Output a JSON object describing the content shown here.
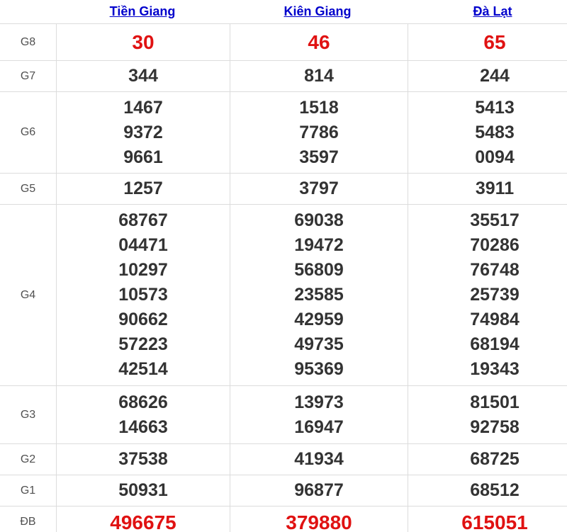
{
  "columns": [
    {
      "label": "Tiền Giang"
    },
    {
      "label": "Kiên Giang"
    },
    {
      "label": "Đà Lạt"
    }
  ],
  "rows": [
    {
      "prize": "G8",
      "highlight": true,
      "values": [
        [
          "30"
        ],
        [
          "46"
        ],
        [
          "65"
        ]
      ]
    },
    {
      "prize": "G7",
      "highlight": false,
      "values": [
        [
          "344"
        ],
        [
          "814"
        ],
        [
          "244"
        ]
      ]
    },
    {
      "prize": "G6",
      "highlight": false,
      "values": [
        [
          "1467",
          "9372",
          "9661"
        ],
        [
          "1518",
          "7786",
          "3597"
        ],
        [
          "5413",
          "5483",
          "0094"
        ]
      ]
    },
    {
      "prize": "G5",
      "highlight": false,
      "values": [
        [
          "1257"
        ],
        [
          "3797"
        ],
        [
          "3911"
        ]
      ]
    },
    {
      "prize": "G4",
      "highlight": false,
      "values": [
        [
          "68767",
          "04471",
          "10297",
          "10573",
          "90662",
          "57223",
          "42514"
        ],
        [
          "69038",
          "19472",
          "56809",
          "23585",
          "42959",
          "49735",
          "95369"
        ],
        [
          "35517",
          "70286",
          "76748",
          "25739",
          "74984",
          "68194",
          "19343"
        ]
      ]
    },
    {
      "prize": "G3",
      "highlight": false,
      "values": [
        [
          "68626",
          "14663"
        ],
        [
          "13973",
          "16947"
        ],
        [
          "81501",
          "92758"
        ]
      ]
    },
    {
      "prize": "G2",
      "highlight": false,
      "values": [
        [
          "37538"
        ],
        [
          "41934"
        ],
        [
          "68725"
        ]
      ]
    },
    {
      "prize": "G1",
      "highlight": false,
      "values": [
        [
          "50931"
        ],
        [
          "96877"
        ],
        [
          "68512"
        ]
      ]
    },
    {
      "prize": "ĐB",
      "highlight": true,
      "values": [
        [
          "496675"
        ],
        [
          "379880"
        ],
        [
          "615051"
        ]
      ]
    }
  ],
  "colors": {
    "accent_red": "#e01212",
    "link_blue": "#0000cc",
    "number_dark": "#333333",
    "label_gray": "#505050",
    "border_gray": "#dcdcdc"
  }
}
